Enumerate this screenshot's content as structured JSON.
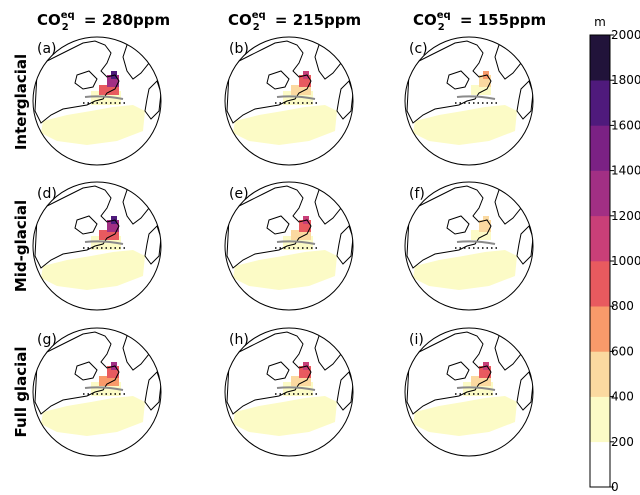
{
  "column_titles": [
    {
      "base": "CO",
      "sub": "2",
      "sup": "eq",
      "rest": " = 280ppm"
    },
    {
      "base": "CO",
      "sub": "2",
      "sup": "eq",
      "rest": " = 215ppm"
    },
    {
      "base": "CO",
      "sub": "2",
      "sup": "eq",
      "rest": " = 155ppm"
    }
  ],
  "row_titles": [
    "Interglacial",
    "Mid-glacial",
    "Full glacial"
  ],
  "panel_labels": [
    "(a)",
    "(b)",
    "(c)",
    "(d)",
    "(e)",
    "(f)",
    "(g)",
    "(h)",
    "(i)"
  ],
  "colorbar": {
    "unit": "m",
    "ticks": [
      "0",
      "200",
      "400",
      "600",
      "800",
      "1000",
      "1200",
      "1400",
      "1600",
      "1800",
      "2000"
    ],
    "range": [
      0,
      2000
    ],
    "step": 200,
    "colors": [
      "#ffffff",
      "#fcfbc6",
      "#fbd9a0",
      "#f89a6a",
      "#e85a5f",
      "#c93f78",
      "#a22f84",
      "#7b2184",
      "#4f1a7c",
      "#21133a"
    ]
  },
  "chart_data": {
    "type": "heatmap",
    "layout": "3x3 map panels",
    "columns": [
      "CO2eq = 280ppm",
      "CO2eq = 215ppm",
      "CO2eq = 155ppm"
    ],
    "rows": [
      "Interglacial",
      "Mid-glacial",
      "Full glacial"
    ],
    "panels": [
      {
        "label": "(a)",
        "max_value": 1800
      },
      {
        "label": "(b)",
        "max_value": 1200
      },
      {
        "label": "(c)",
        "max_value": 800
      },
      {
        "label": "(d)",
        "max_value": 1800
      },
      {
        "label": "(e)",
        "max_value": 1200
      },
      {
        "label": "(f)",
        "max_value": 600
      },
      {
        "label": "(g)",
        "max_value": 1400
      },
      {
        "label": "(h)",
        "max_value": 1200
      },
      {
        "label": "(i)",
        "max_value": 1200
      }
    ],
    "legend": "right"
  }
}
